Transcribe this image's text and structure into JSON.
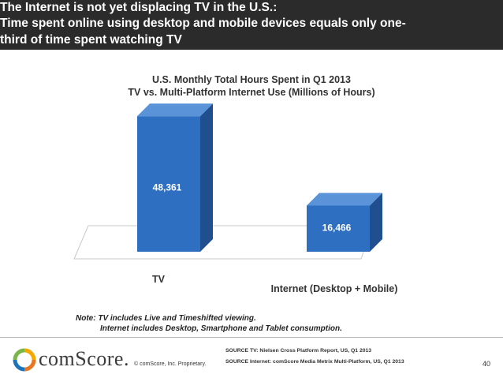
{
  "header": {
    "line1": "The Internet is not yet displacing TV in the U.S.:",
    "line2": "Time spent online using desktop and mobile devices equals only one-",
    "line3": "third of time spent watching TV"
  },
  "chart_data": {
    "type": "bar",
    "title": "U.S. Monthly Total Hours Spent in Q1 2013",
    "subtitle": "TV vs. Multi-Platform Internet Use (Millions of Hours)",
    "categories": [
      "TV",
      "Internet (Desktop + Mobile)"
    ],
    "values": [
      48361,
      16466
    ],
    "value_labels": [
      "48,361",
      "16,466"
    ],
    "ylim": [
      0,
      55000
    ],
    "grid": false,
    "bar_color": "#2e6fc1"
  },
  "note": {
    "line1": "Note:  TV includes Live and Timeshifted viewing.",
    "line2": "Internet includes Desktop, Smartphone and Tablet consumption."
  },
  "footer": {
    "logo_text": "comScore.",
    "copyright": "© comScore, Inc.    Proprietary.",
    "source_tv": "SOURCE TV: Nielsen Cross Platform Report, US, Q1 2013",
    "source_internet": "SOURCE Internet: comScore Media Metrix Multi-Platform, US, Q1 2013",
    "page_number": "40"
  }
}
